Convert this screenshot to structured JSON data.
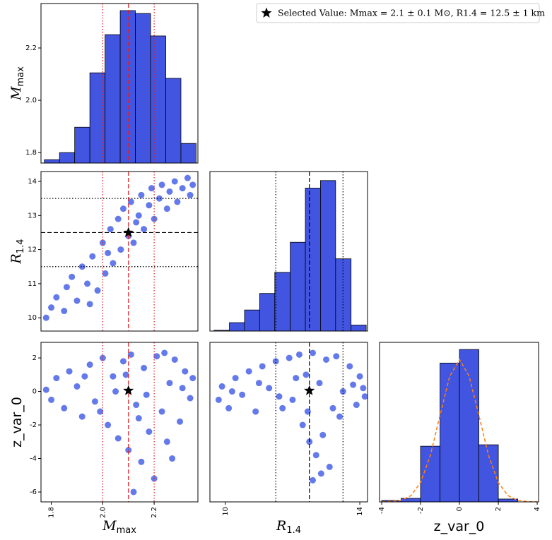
{
  "legend": {
    "label": "Selected Value: Mmax = 2.1 ± 0.1 M⊙, R1.4 = 12.5 ± 1 km",
    "marker": "star"
  },
  "chart_data": [
    {
      "type": "histogram",
      "color": "#4255e0",
      "ylabel": {
        "symbol": "M",
        "subscript": "max"
      },
      "bins": [
        1.773,
        1.832,
        1.891,
        1.95,
        2.009,
        2.068,
        2.127,
        2.186,
        2.245,
        2.304,
        2.363
      ],
      "values": [
        1.773,
        1.8,
        1.897,
        2.105,
        2.251,
        2.343,
        2.332,
        2.246,
        2.084,
        1.835
      ],
      "xlim": [
        1.76,
        2.37
      ],
      "ylim": [
        1.76,
        2.37
      ],
      "yticks": [
        1.8,
        {
          "value": 2,
          "label": "2.0"
        },
        2.2
      ],
      "vlines": [
        {
          "x": 2.0,
          "style": "dotted",
          "color": "#e41a1c"
        },
        {
          "x": 2.1,
          "style": "dashed",
          "color": "#e41a1c"
        },
        {
          "x": 2.2,
          "style": "dotted",
          "color": "#e41a1c"
        }
      ]
    },
    {
      "type": "scatter",
      "color": "#4a63e6",
      "ylabel": {
        "symbol": "R",
        "subscript": "1.4"
      },
      "x": [
        1.78,
        1.8,
        1.82,
        1.85,
        1.86,
        1.88,
        1.9,
        1.92,
        1.94,
        1.96,
        1.98,
        2.0,
        2.01,
        2.03,
        2.04,
        2.06,
        2.07,
        2.08,
        2.1,
        2.11,
        2.12,
        2.14,
        2.15,
        2.16,
        2.18,
        2.19,
        2.2,
        2.22,
        2.23,
        2.25,
        2.26,
        2.28,
        2.29,
        2.31,
        2.33,
        2.34,
        2.35,
        2.02,
        1.95,
        2.13
      ],
      "y": [
        10.0,
        10.3,
        10.6,
        10.2,
        10.9,
        11.2,
        10.5,
        11.5,
        11.0,
        11.8,
        10.8,
        12.2,
        11.3,
        12.6,
        11.6,
        12.9,
        12.0,
        13.2,
        12.4,
        13.4,
        12.2,
        13.0,
        13.6,
        12.6,
        13.3,
        13.8,
        12.9,
        13.5,
        13.9,
        13.2,
        13.7,
        14.0,
        13.4,
        13.8,
        14.1,
        13.6,
        13.9,
        11.9,
        10.4,
        12.8
      ],
      "xlim": [
        1.76,
        2.37
      ],
      "ylim": [
        9.61,
        14.29
      ],
      "yticks": [
        10,
        11,
        12,
        13,
        14
      ],
      "vlines": [
        {
          "x": 2.0,
          "style": "dotted",
          "color": "#e41a1c"
        },
        {
          "x": 2.1,
          "style": "dashed",
          "color": "#e41a1c"
        },
        {
          "x": 2.2,
          "style": "dotted",
          "color": "#e41a1c"
        }
      ],
      "hlines": [
        {
          "y": 11.5,
          "style": "dotted",
          "color": "#000000"
        },
        {
          "y": 12.5,
          "style": "dashed",
          "color": "#000000"
        },
        {
          "y": 13.5,
          "style": "dotted",
          "color": "#000000"
        }
      ],
      "star": {
        "x": 2.1,
        "y": 12.5
      }
    },
    {
      "type": "histogram",
      "color": "#4255e0",
      "bins": [
        9.66,
        10.12,
        10.57,
        11.02,
        11.47,
        11.93,
        12.38,
        12.83,
        13.28,
        13.74,
        14.19
      ],
      "values": [
        0.005,
        0.056,
        0.14,
        0.25,
        0.39,
        0.59,
        0.95,
        1.0,
        0.48,
        0.04
      ],
      "xlim": [
        9.54,
        14.23
      ],
      "ylim": [
        0,
        1.06
      ],
      "vlines": [
        {
          "x": 11.5,
          "style": "dotted",
          "color": "#000000"
        },
        {
          "x": 12.5,
          "style": "dashed",
          "color": "#000000"
        },
        {
          "x": 13.5,
          "style": "dotted",
          "color": "#000000"
        }
      ]
    },
    {
      "type": "scatter",
      "color": "#4a63e6",
      "xlabel": {
        "symbol": "M",
        "subscript": "max"
      },
      "ylabel": {
        "plain": "z_var_0"
      },
      "x": [
        1.78,
        1.8,
        1.82,
        1.85,
        1.87,
        1.9,
        1.92,
        1.95,
        1.97,
        2.0,
        2.02,
        2.04,
        2.06,
        2.08,
        2.1,
        2.11,
        2.13,
        2.15,
        2.16,
        2.18,
        2.2,
        2.21,
        2.23,
        2.25,
        2.26,
        2.28,
        2.3,
        2.32,
        2.34,
        2.35,
        2.12,
        2.05,
        1.93,
        2.17,
        2.27,
        2.09,
        2.24,
        1.99,
        2.31,
        2.14
      ],
      "y": [
        0.1,
        -0.5,
        0.8,
        -1.0,
        1.2,
        0.3,
        -1.5,
        1.6,
        -0.6,
        2.0,
        -2.0,
        0.9,
        -2.8,
        1.8,
        -3.5,
        2.2,
        -0.8,
        -4.2,
        1.4,
        -2.4,
        -5.2,
        2.1,
        -1.2,
        -3.0,
        0.5,
        1.9,
        -1.8,
        1.2,
        -0.4,
        0.8,
        -6.0,
        0.0,
        0.9,
        -0.2,
        -4.0,
        1.0,
        2.3,
        -1.2,
        0.2,
        -1.6
      ],
      "xlim": [
        1.76,
        2.37
      ],
      "ylim": [
        -6.59,
        2.93
      ],
      "xticks": [
        1.8,
        {
          "value": 2,
          "label": "2.0"
        },
        2.2
      ],
      "yticks": [
        2,
        0,
        -2,
        -4,
        -6
      ],
      "vlines": [
        {
          "x": 2.0,
          "style": "dotted",
          "color": "#e41a1c"
        },
        {
          "x": 2.1,
          "style": "dashed",
          "color": "#e41a1c"
        },
        {
          "x": 2.2,
          "style": "dotted",
          "color": "#e41a1c"
        }
      ],
      "star": {
        "x": 2.1,
        "y": 0.05
      }
    },
    {
      "type": "scatter",
      "color": "#4a63e6",
      "xlabel": {
        "symbol": "R",
        "subscript": "1.4"
      },
      "x": [
        9.8,
        9.9,
        10.1,
        10.3,
        10.5,
        10.7,
        10.9,
        11.1,
        11.3,
        11.5,
        11.7,
        11.9,
        12.0,
        12.2,
        12.3,
        12.4,
        12.5,
        12.6,
        12.7,
        12.8,
        12.9,
        13.0,
        13.1,
        13.2,
        13.3,
        13.5,
        13.7,
        13.9,
        14.0,
        14.1,
        12.6,
        11.0,
        12.1,
        13.4,
        12.85,
        10.2,
        13.8,
        11.6,
        12.45,
        14.15
      ],
      "y": [
        -0.5,
        0.3,
        -1.0,
        0.8,
        -0.2,
        1.2,
        -1.2,
        1.5,
        0.2,
        1.8,
        -1.0,
        2.0,
        -0.5,
        2.2,
        -2.0,
        1.0,
        -3.0,
        2.3,
        -3.8,
        0.5,
        -2.6,
        1.9,
        -4.5,
        -1.0,
        2.1,
        0.0,
        1.5,
        -0.8,
        0.9,
        0.2,
        -5.3,
        0.5,
        0.8,
        -1.5,
        -4.9,
        0.0,
        0.4,
        -0.3,
        -1.2,
        -0.3
      ],
      "xlim": [
        9.54,
        14.23
      ],
      "ylim": [
        -6.59,
        2.93
      ],
      "xticks": [
        10,
        14
      ],
      "vlines": [
        {
          "x": 11.5,
          "style": "dotted",
          "color": "#000000"
        },
        {
          "x": 12.5,
          "style": "dashed",
          "color": "#000000"
        },
        {
          "x": 13.5,
          "style": "dotted",
          "color": "#000000"
        }
      ],
      "star": {
        "x": 12.5,
        "y": 0.05
      }
    },
    {
      "type": "histogram",
      "color": "#4255e0",
      "xlabel": {
        "plain": "z_var_0"
      },
      "bins": [
        -4,
        -3,
        -2,
        -1,
        0,
        1,
        2,
        3
      ],
      "values": [
        0.004,
        0.01,
        0.156,
        0.389,
        0.427,
        0.16,
        0.008
      ],
      "xlim": [
        -4.11,
        4.07
      ],
      "ylim": [
        0,
        0.447
      ],
      "xticks": [
        -4,
        -2,
        0,
        2,
        4
      ],
      "curve": {
        "color": "#ff7f0e",
        "x": [
          -4,
          -3.5,
          -3,
          -2.5,
          -2,
          -1.5,
          -1,
          -0.5,
          0,
          0.5,
          1,
          1.5,
          2,
          2.5,
          3,
          3.5,
          4
        ],
        "values": [
          0.0001,
          0.0009,
          0.0044,
          0.0175,
          0.054,
          0.1295,
          0.242,
          0.3521,
          0.3989,
          0.3521,
          0.242,
          0.1295,
          0.054,
          0.0175,
          0.0044,
          0.0009,
          0.0001
        ]
      }
    }
  ]
}
